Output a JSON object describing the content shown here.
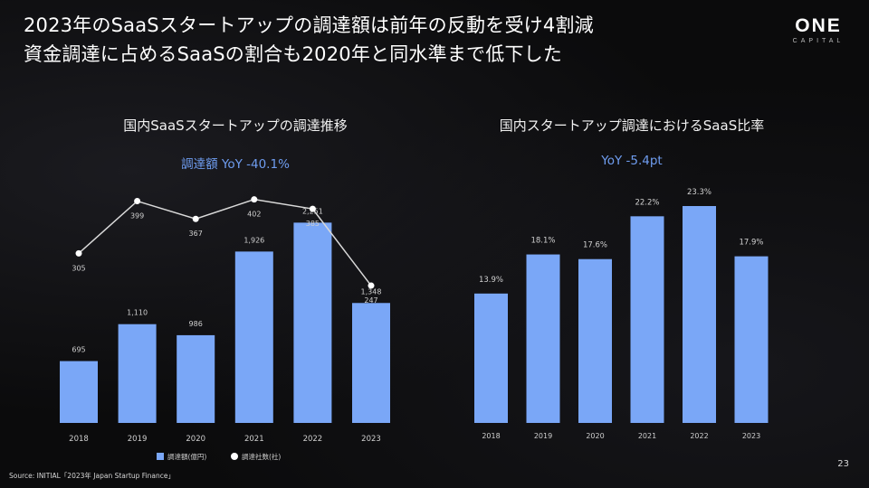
{
  "headline": {
    "line1": "2023年のSaaSスタートアップの調達額は前年の反動を受け4割減",
    "line2": "資金調達に占めるSaaSの割合も2020年と同水準まで低下した"
  },
  "logo": {
    "mark": "ONE",
    "sub": "CAPITAL"
  },
  "colors": {
    "bar": "#7aa7f7",
    "line": "#d9d9d9",
    "dot": "#ffffff",
    "accent": "#6f9df0"
  },
  "chart_data": [
    {
      "type": "bar+line",
      "title": "国内SaaSスタートアップの調達推移",
      "subtitle": "調達額 YoY -40.1%",
      "categories": [
        "2018",
        "2019",
        "2020",
        "2021",
        "2022",
        "2023"
      ],
      "series": [
        {
          "name": "調達額(億円)",
          "kind": "bar",
          "values": [
            695,
            1110,
            986,
            1926,
            2251,
            1348
          ],
          "labels": [
            "695",
            "1,110",
            "986",
            "1,926",
            "2,251",
            "1,348"
          ]
        },
        {
          "name": "調達社数(社)",
          "kind": "line",
          "values": [
            305,
            399,
            367,
            402,
            385,
            247
          ],
          "labels": [
            "305",
            "399",
            "367",
            "402",
            "385",
            "247"
          ]
        }
      ],
      "ylim_bar": [
        0,
        2600
      ],
      "ylim_line": [
        0,
        460
      ]
    },
    {
      "type": "bar",
      "title": "国内スタートアップ調達におけるSaaS比率",
      "subtitle": "YoY -5.4pt",
      "categories": [
        "2018",
        "2019",
        "2020",
        "2021",
        "2022",
        "2023"
      ],
      "values": [
        13.9,
        18.1,
        17.6,
        22.2,
        23.3,
        17.9
      ],
      "labels": [
        "13.9%",
        "18.1%",
        "17.6%",
        "22.2%",
        "23.3%",
        "17.9%"
      ],
      "ylim": [
        0,
        26
      ]
    }
  ],
  "source": "Source: INITIAL「2023年 Japan Startup Finance」",
  "page_number": "23"
}
